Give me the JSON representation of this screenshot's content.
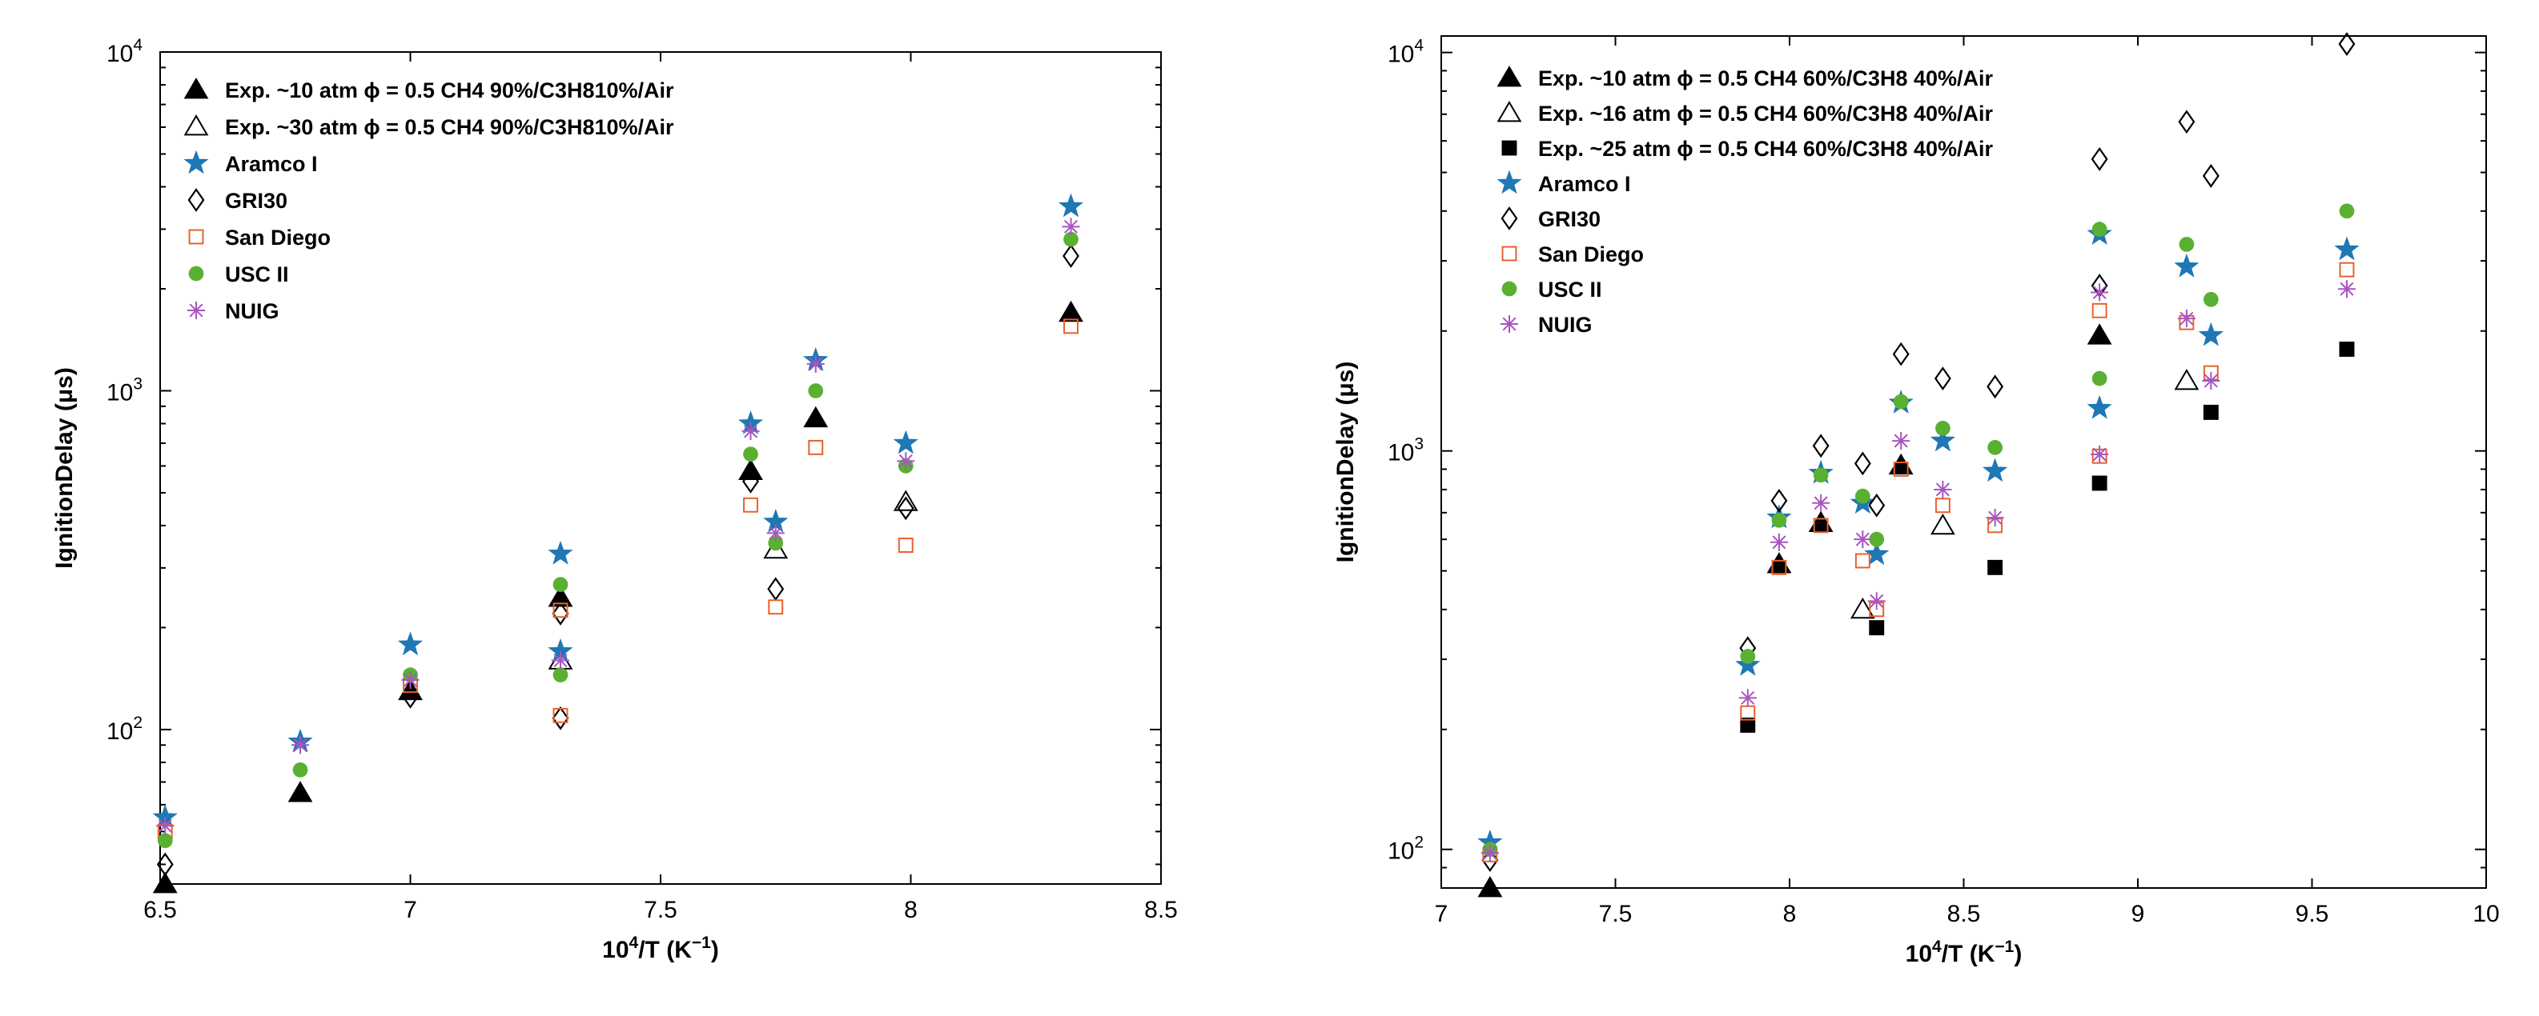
{
  "chart_data": [
    {
      "type": "scatter",
      "x_scale": "linear",
      "y_scale": "log",
      "xlim": [
        6.5,
        8.5
      ],
      "ylim": [
        35,
        10000
      ],
      "xticks": [
        6.5,
        7,
        7.5,
        8,
        8.5
      ],
      "xtick_labels": [
        "6.5",
        "7",
        "7.5",
        "8",
        "8.5"
      ],
      "yticks": [
        100,
        1000,
        10000
      ],
      "ytick_labels_base": [
        "10",
        "10",
        "10"
      ],
      "ytick_labels_exp": [
        "2",
        "3",
        "4"
      ],
      "xlabel_main": "10",
      "xlabel_sup": "4",
      "xlabel_rest": "/T (K",
      "xlabel_sup2": "−1",
      "xlabel_end": ")",
      "ylabel": "IgnitionDelay (μs)",
      "legend_position": "top-left",
      "series": [
        {
          "name": "Exp. ~10 atm ϕ = 0.5 CH4 90%/C3H810%/Air",
          "marker": "triangle-filled",
          "color": "#000000",
          "x": [
            6.51,
            6.78,
            7.0,
            7.3,
            7.68,
            7.81,
            8.32
          ],
          "y": [
            35,
            65,
            130,
            245,
            580,
            830,
            1700
          ]
        },
        {
          "name": "Exp. ~30 atm ϕ = 0.5 CH4 90%/C3H810%/Air",
          "marker": "triangle-open",
          "color": "#000000",
          "x": [
            7.3,
            7.73,
            7.99
          ],
          "y": [
            160,
            340,
            470
          ]
        },
        {
          "name": "Aramco I",
          "marker": "star",
          "color": "#1f77b4",
          "x": [
            6.51,
            6.78,
            7.0,
            7.3,
            7.3,
            7.68,
            7.73,
            7.81,
            7.99,
            8.32
          ],
          "y": [
            55,
            92,
            178,
            330,
            170,
            800,
            410,
            1230,
            700,
            3500
          ]
        },
        {
          "name": "GRI30",
          "marker": "diamond-open",
          "color": "#000000",
          "x": [
            6.51,
            7.0,
            7.3,
            7.3,
            7.68,
            7.73,
            7.99,
            8.32
          ],
          "y": [
            40,
            125,
            108,
            220,
            540,
            260,
            450,
            2500
          ]
        },
        {
          "name": "San Diego",
          "marker": "square-open",
          "color": "#e8622c",
          "x": [
            6.51,
            7.0,
            7.3,
            7.3,
            7.68,
            7.73,
            7.81,
            7.99,
            8.32
          ],
          "y": [
            50,
            135,
            110,
            225,
            460,
            230,
            680,
            350,
            1550
          ]
        },
        {
          "name": "USC II",
          "marker": "circle-filled",
          "color": "#5ab031",
          "x": [
            6.51,
            6.78,
            7.0,
            7.3,
            7.3,
            7.68,
            7.73,
            7.81,
            7.99,
            8.32
          ],
          "y": [
            47,
            76,
            145,
            268,
            145,
            650,
            355,
            1000,
            600,
            2800
          ]
        },
        {
          "name": "NUIG",
          "marker": "asterisk",
          "color": "#a855c0",
          "x": [
            6.51,
            6.78,
            7.0,
            7.3,
            7.68,
            7.73,
            7.81,
            7.99,
            8.32
          ],
          "y": [
            52,
            90,
            140,
            160,
            760,
            380,
            1200,
            620,
            3050
          ]
        }
      ]
    },
    {
      "type": "scatter",
      "x_scale": "linear",
      "y_scale": "log",
      "xlim": [
        7,
        10
      ],
      "ylim": [
        80,
        11000
      ],
      "xticks": [
        7,
        7.5,
        8,
        8.5,
        9,
        9.5,
        10
      ],
      "xtick_labels": [
        "7",
        "7.5",
        "8",
        "8.5",
        "9",
        "9.5",
        "10"
      ],
      "yticks": [
        100,
        1000,
        10000
      ],
      "ytick_labels_base": [
        "10",
        "10",
        "10"
      ],
      "ytick_labels_exp": [
        "2",
        "3",
        "4"
      ],
      "xlabel_main": "10",
      "xlabel_sup": "4",
      "xlabel_rest": "/T (K",
      "xlabel_sup2": "−1",
      "xlabel_end": ")",
      "ylabel": "IgnitionDelay (μs)",
      "legend_position": "top-left",
      "series": [
        {
          "name": "Exp. ~10 atm ϕ = 0.5 CH4 60%/C3H8 40%/Air",
          "marker": "triangle-filled",
          "color": "#000000",
          "x": [
            7.14,
            7.97,
            8.09,
            8.32,
            8.89
          ],
          "y": [
            80,
            520,
            660,
            920,
            1950
          ]
        },
        {
          "name": "Exp. ~16 atm ϕ = 0.5 CH4 60%/C3H8 40%/Air",
          "marker": "triangle-open",
          "color": "#000000",
          "x": [
            8.21,
            8.44,
            9.14
          ],
          "y": [
            400,
            650,
            1500
          ]
        },
        {
          "name": "Exp. ~25 atm ϕ = 0.5 CH4 60%/C3H8 40%/Air",
          "marker": "square-filled",
          "color": "#000000",
          "x": [
            7.88,
            8.25,
            8.59,
            8.89,
            9.21,
            9.6
          ],
          "y": [
            205,
            360,
            510,
            830,
            1250,
            1800
          ]
        },
        {
          "name": "Aramco I",
          "marker": "star",
          "color": "#1f77b4",
          "x": [
            7.14,
            7.88,
            7.97,
            8.09,
            8.21,
            8.25,
            8.32,
            8.44,
            8.59,
            8.89,
            8.89,
            9.14,
            9.21,
            9.6
          ],
          "y": [
            104,
            290,
            680,
            880,
            740,
            550,
            1320,
            1060,
            890,
            3500,
            1280,
            2900,
            1950,
            3200
          ]
        },
        {
          "name": "GRI30",
          "marker": "diamond-open",
          "color": "#000000",
          "x": [
            7.14,
            7.88,
            7.97,
            8.09,
            8.21,
            8.25,
            8.32,
            8.44,
            8.59,
            8.89,
            8.89,
            9.14,
            9.21,
            9.6
          ],
          "y": [
            94,
            320,
            750,
            1030,
            930,
            730,
            1750,
            1520,
            1450,
            2600,
            5400,
            6700,
            4900,
            10500
          ]
        },
        {
          "name": "San Diego",
          "marker": "square-open",
          "color": "#e8622c",
          "x": [
            7.14,
            7.88,
            7.97,
            8.09,
            8.21,
            8.25,
            8.32,
            8.44,
            8.59,
            8.89,
            8.89,
            9.14,
            9.21,
            9.6
          ],
          "y": [
            97,
            220,
            510,
            650,
            530,
            400,
            900,
            730,
            650,
            2250,
            970,
            2100,
            1570,
            2850
          ]
        },
        {
          "name": "USC II",
          "marker": "circle-filled",
          "color": "#5ab031",
          "x": [
            7.14,
            7.88,
            7.97,
            8.09,
            8.21,
            8.25,
            8.32,
            8.44,
            8.59,
            8.89,
            8.89,
            9.14,
            9.21,
            9.6
          ],
          "y": [
            100,
            305,
            670,
            870,
            770,
            600,
            1330,
            1140,
            1020,
            3600,
            1520,
            3300,
            2400,
            4000
          ]
        },
        {
          "name": "NUIG",
          "marker": "asterisk",
          "color": "#a855c0",
          "x": [
            7.14,
            7.88,
            7.97,
            8.09,
            8.21,
            8.25,
            8.32,
            8.44,
            8.59,
            8.89,
            8.89,
            9.14,
            9.21,
            9.6
          ],
          "y": [
            98,
            240,
            590,
            740,
            600,
            420,
            1060,
            800,
            680,
            2500,
            980,
            2150,
            1500,
            2550
          ]
        }
      ]
    }
  ]
}
